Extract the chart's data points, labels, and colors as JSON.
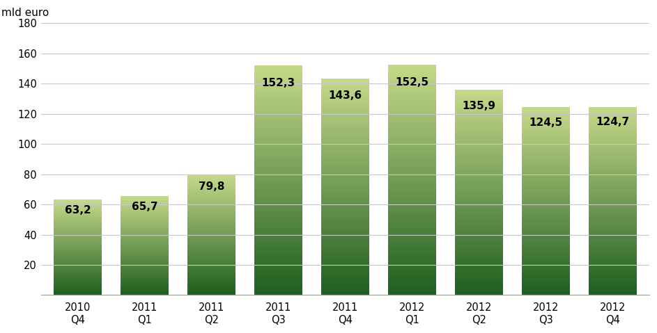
{
  "categories": [
    "2010\nQ4",
    "2011\nQ1",
    "2011\nQ2",
    "2011\nQ3",
    "2011\nQ4",
    "2012\nQ1",
    "2012\nQ2",
    "2012\nQ3",
    "2012\nQ4"
  ],
  "values": [
    63.2,
    65.7,
    79.8,
    152.3,
    143.6,
    152.5,
    135.9,
    124.5,
    124.7
  ],
  "labels": [
    "63,2",
    "65,7",
    "79,8",
    "152,3",
    "143,6",
    "152,5",
    "135,9",
    "124,5",
    "124,7"
  ],
  "bar_color_top": "#c5d98a",
  "bar_color_bottom": "#1e5e1e",
  "ylabel": "mld euro",
  "ylim": [
    0,
    180
  ],
  "yticks": [
    0,
    20,
    40,
    60,
    80,
    100,
    120,
    140,
    160,
    180
  ],
  "background_color": "#ffffff",
  "grid_color": "#c8c8c8",
  "label_fontsize": 11,
  "ylabel_fontsize": 11,
  "tick_fontsize": 10.5,
  "bar_width": 0.72
}
